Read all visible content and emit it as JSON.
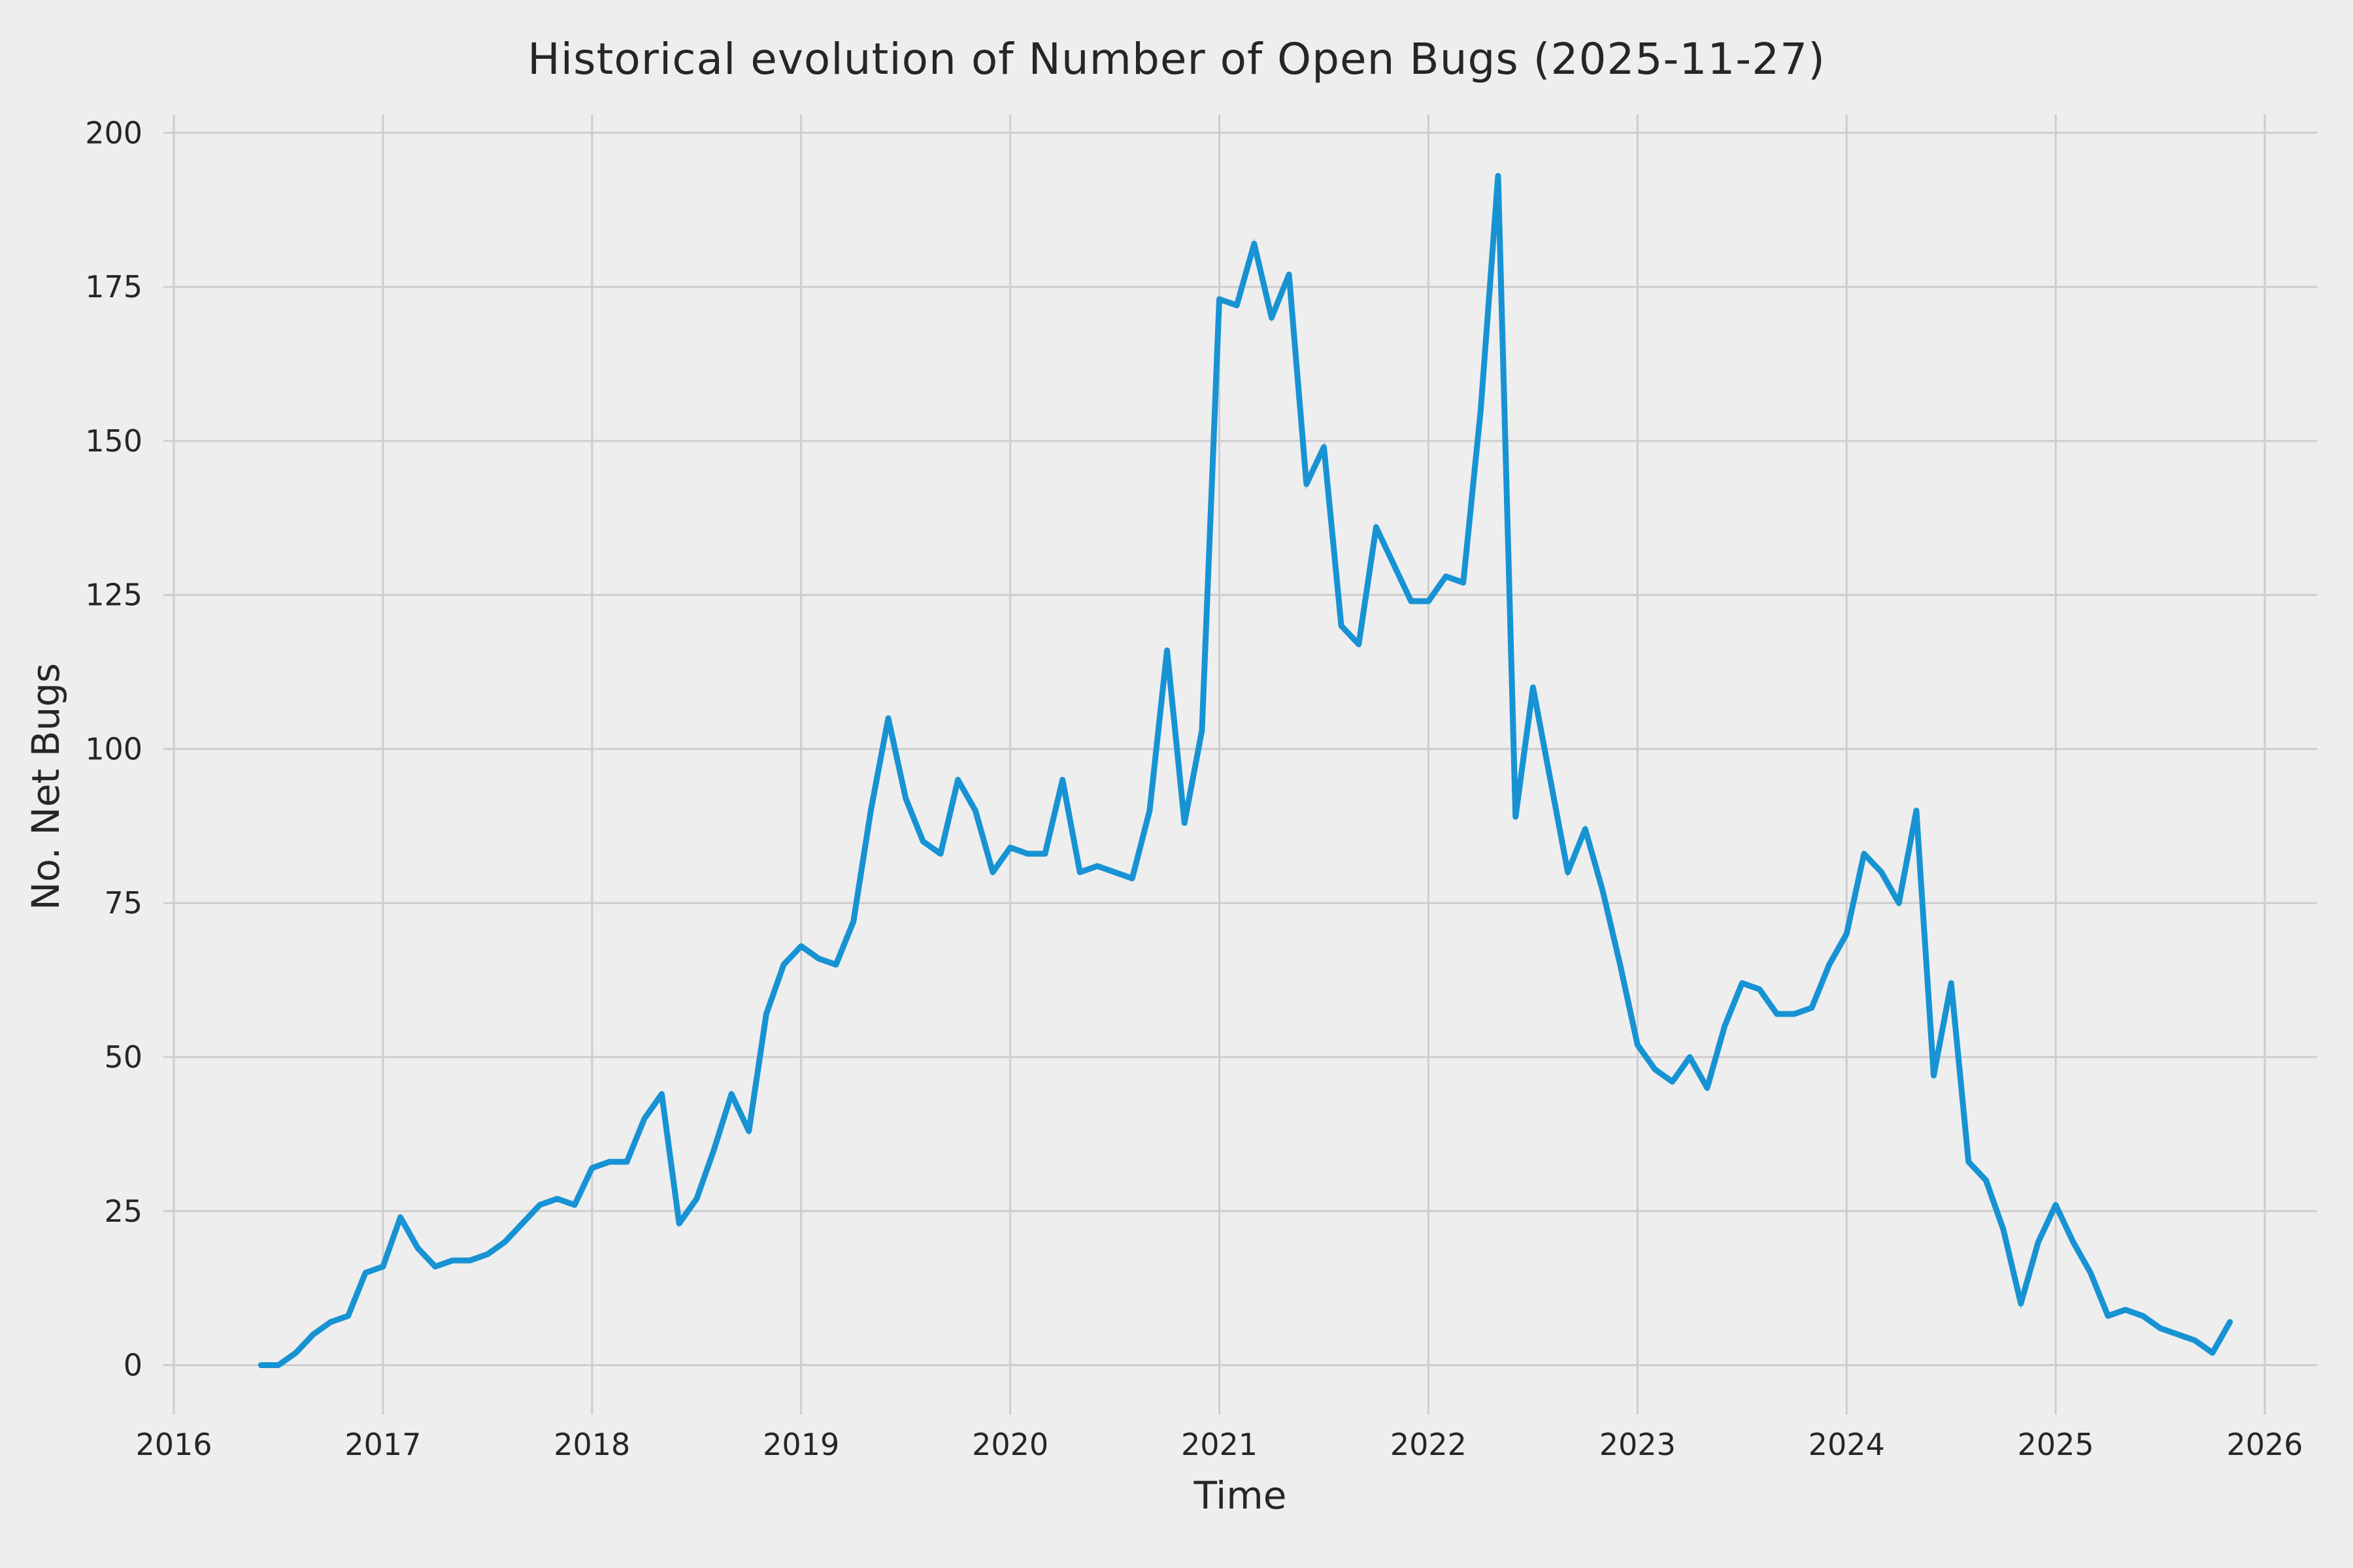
{
  "figure": {
    "title": "Historical evolution of Number of Open Bugs (2025-11-27)",
    "xlabel": "Time",
    "ylabel": "No. Net Bugs"
  },
  "chart_data": {
    "type": "line",
    "title": "Historical evolution of Number of Open Bugs (2025-11-27)",
    "xlabel": "Time",
    "ylabel": "No. Net Bugs",
    "x_ticks": [
      2016,
      2017,
      2018,
      2019,
      2020,
      2021,
      2022,
      2023,
      2024,
      2025,
      2026
    ],
    "y_ticks": [
      0,
      25,
      50,
      75,
      100,
      125,
      150,
      175,
      200
    ],
    "xlim": [
      2015.95,
      2026.25
    ],
    "ylim": [
      -8,
      203
    ],
    "grid": true,
    "legend": "none",
    "colors": {
      "line": "#1793d4",
      "line_shadow": "#a3cfe9",
      "background": "#eeeeee",
      "grid": "#cdcdcd",
      "text": "#262626"
    },
    "series": [
      {
        "name": "No. Net Bugs",
        "start_month": "2016-06",
        "frequency": "monthly",
        "values": [
          0,
          0,
          2,
          5,
          7,
          8,
          15,
          16,
          24,
          19,
          16,
          17,
          17,
          18,
          20,
          23,
          26,
          27,
          26,
          32,
          33,
          33,
          40,
          44,
          23,
          27,
          35,
          44,
          38,
          57,
          65,
          68,
          66,
          65,
          72,
          90,
          105,
          92,
          85,
          83,
          95,
          90,
          80,
          84,
          83,
          83,
          95,
          80,
          81,
          80,
          79,
          90,
          116,
          88,
          103,
          173,
          172,
          182,
          170,
          177,
          143,
          149,
          120,
          117,
          136,
          130,
          124,
          124,
          128,
          127,
          155,
          193,
          89,
          110,
          95,
          80,
          87,
          77,
          65,
          52,
          48,
          46,
          50,
          45,
          55,
          62,
          61,
          57,
          57,
          58,
          65,
          70,
          83,
          80,
          75,
          90,
          47,
          62,
          33,
          30,
          22,
          10,
          20,
          26,
          20,
          15,
          8,
          9,
          8,
          6,
          5,
          4,
          2,
          7
        ]
      }
    ]
  }
}
